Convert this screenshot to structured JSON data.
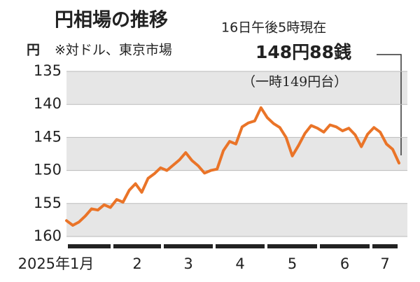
{
  "chart_data": {
    "type": "line",
    "title": "円相場の推移",
    "subtitle": "16日午後5時現在",
    "y_unit": "円",
    "note": "※対ドル、東京市場",
    "annotation": "148円88銭",
    "annotation_sub": "（一時149円台）",
    "x_labels": [
      "2025年1月",
      "2",
      "3",
      "4",
      "5",
      "6",
      "7"
    ],
    "values": [
      157.6,
      158.3,
      157.8,
      156.9,
      155.8,
      156.0,
      155.2,
      155.6,
      154.4,
      154.8,
      153.0,
      152.0,
      153.3,
      151.2,
      150.5,
      149.6,
      150.0,
      149.2,
      148.4,
      147.3,
      148.5,
      149.3,
      150.4,
      150.0,
      149.8,
      147.0,
      145.6,
      146.0,
      143.4,
      142.8,
      142.5,
      140.5,
      142.0,
      142.9,
      143.5,
      145.0,
      147.8,
      146.2,
      144.4,
      143.2,
      143.6,
      144.2,
      143.1,
      143.4,
      144.0,
      143.6,
      144.6,
      146.4,
      144.5,
      143.5,
      144.2,
      146.0,
      146.8,
      148.88
    ],
    "color": "#ea7428",
    "ylim": [
      135,
      160
    ],
    "yticks": [
      135,
      140,
      145,
      150,
      155,
      160
    ],
    "y_inverted": true,
    "bands": true
  }
}
